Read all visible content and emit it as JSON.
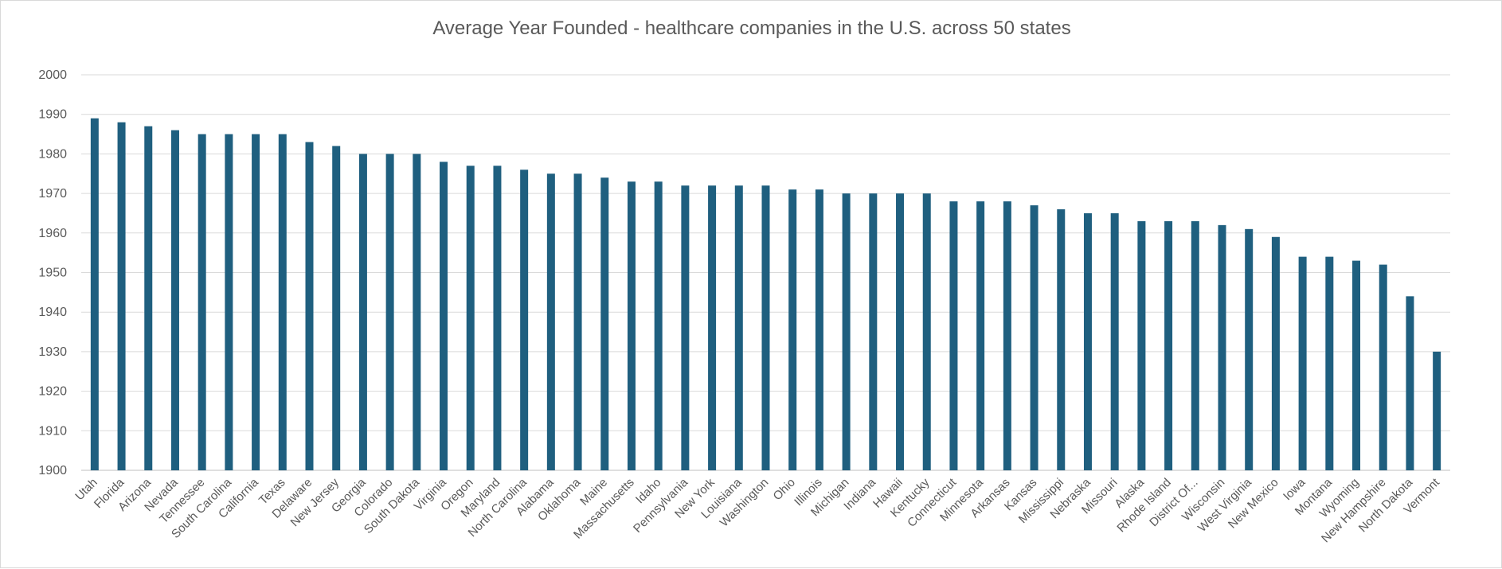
{
  "chart_data": {
    "type": "bar",
    "title": "Average Year Founded - healthcare companies in the U.S. across 50 states",
    "xlabel": "",
    "ylabel": "",
    "ylim": [
      1900,
      2000
    ],
    "yticks": [
      "1900",
      "1910",
      "1920",
      "1930",
      "1940",
      "1950",
      "1960",
      "1970",
      "1980",
      "1990",
      "2000"
    ],
    "grid": true,
    "legend": "none",
    "bar_color": "#1f5f7f",
    "categories": [
      "Utah",
      "Florida",
      "Arizona",
      "Nevada",
      "Tennessee",
      "South Carolina",
      "California",
      "Texas",
      "Delaware",
      "New Jersey",
      "Georgia",
      "Colorado",
      "South Dakota",
      "Virginia",
      "Oregon",
      "Maryland",
      "North Carolina",
      "Alabama",
      "Oklahoma",
      "Maine",
      "Massachusetts",
      "Idaho",
      "Pennsylvania",
      "New York",
      "Louisiana",
      "Washington",
      "Ohio",
      "Illinois",
      "Michigan",
      "Indiana",
      "Hawaii",
      "Kentucky",
      "Connecticut",
      "Minnesota",
      "Arkansas",
      "Kansas",
      "Mississippi",
      "Nebraska",
      "Missouri",
      "Alaska",
      "Rhode Island",
      "District Of...",
      "Wisconsin",
      "West Virginia",
      "New Mexico",
      "Iowa",
      "Montana",
      "Wyoming",
      "New Hampshire",
      "North Dakota",
      "Vermont"
    ],
    "values": [
      1989,
      1988,
      1987,
      1986,
      1985,
      1985,
      1985,
      1985,
      1983,
      1982,
      1980,
      1980,
      1980,
      1978,
      1977,
      1977,
      1976,
      1975,
      1975,
      1974,
      1973,
      1973,
      1972,
      1972,
      1972,
      1972,
      1971,
      1971,
      1970,
      1970,
      1970,
      1970,
      1968,
      1968,
      1968,
      1967,
      1966,
      1965,
      1965,
      1963,
      1963,
      1963,
      1962,
      1961,
      1959,
      1954,
      1954,
      1953,
      1952,
      1944,
      1930
    ]
  }
}
